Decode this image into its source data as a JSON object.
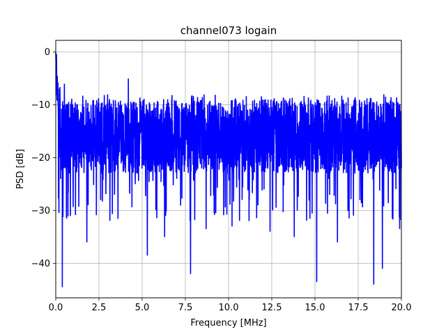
{
  "chart_data": {
    "type": "line",
    "title": "channel073 logain",
    "xlabel": "Frequency [MHz]",
    "ylabel": "PSD [dB]",
    "xlim": [
      0,
      20
    ],
    "ylim": [
      -46.5,
      2.2
    ],
    "xticks": [
      0,
      2.5,
      5,
      7.5,
      10,
      12.5,
      15,
      17.5,
      20
    ],
    "xtick_labels": [
      "0.0",
      "2.5",
      "5.0",
      "7.5",
      "10.0",
      "12.5",
      "15.0",
      "17.5",
      "20.0"
    ],
    "yticks": [
      0,
      -10,
      -20,
      -30,
      -40
    ],
    "ytick_labels": [
      "0",
      "−10",
      "−20",
      "−30",
      "−40"
    ],
    "grid": true,
    "series": [
      {
        "color": "#0000ff",
        "description": "dense noisy PSD trace; peak 0 dB at 0 MHz, mostly between about -25 and -8 dB",
        "points": [
          [
            0,
            0
          ],
          [
            0.05,
            -3
          ],
          [
            0.12,
            -8
          ],
          [
            0.2,
            -18
          ],
          [
            0.28,
            -24
          ],
          [
            0.38,
            -44.5
          ],
          [
            0.5,
            -6
          ],
          [
            0.7,
            -10
          ],
          [
            0.85,
            -31
          ],
          [
            1.0,
            -25
          ],
          [
            1.2,
            -11
          ],
          [
            1.4,
            -20
          ],
          [
            1.8,
            -36
          ],
          [
            2.2,
            -18
          ],
          [
            2.6,
            -28
          ],
          [
            3.0,
            -8
          ],
          [
            3.4,
            -27
          ],
          [
            4.2,
            -5
          ],
          [
            4.6,
            -25
          ],
          [
            5.3,
            -38.5
          ],
          [
            5.8,
            -18
          ],
          [
            6.3,
            -35
          ],
          [
            7.0,
            -24
          ],
          [
            7.8,
            -42
          ],
          [
            8.3,
            -13
          ],
          [
            8.7,
            -33.5
          ],
          [
            9.5,
            -21
          ],
          [
            10.2,
            -33
          ],
          [
            11.0,
            -18
          ],
          [
            11.7,
            -29
          ],
          [
            12.4,
            -34
          ],
          [
            13.0,
            -20
          ],
          [
            13.8,
            -35
          ],
          [
            14.6,
            -10
          ],
          [
            15.1,
            -43.5
          ],
          [
            15.8,
            -24
          ],
          [
            16.3,
            -36
          ],
          [
            17.0,
            -16
          ],
          [
            17.6,
            -28
          ],
          [
            18.1,
            -15
          ],
          [
            18.4,
            -44
          ],
          [
            18.9,
            -41
          ],
          [
            19.5,
            -18
          ],
          [
            19.9,
            -33.5
          ],
          [
            20,
            -22
          ]
        ]
      }
    ]
  }
}
